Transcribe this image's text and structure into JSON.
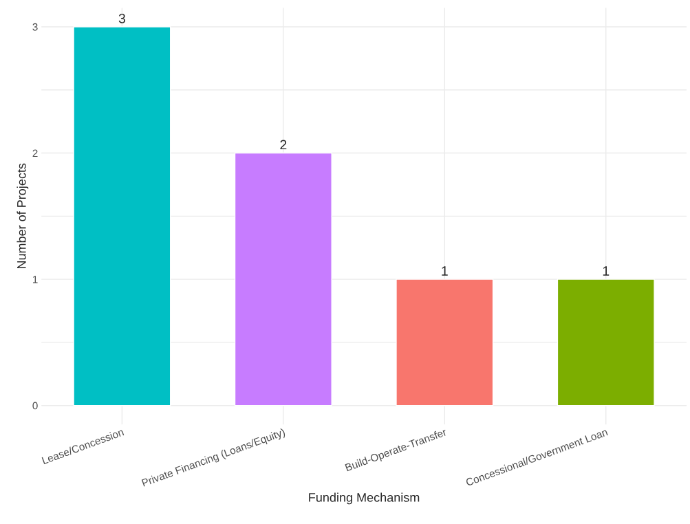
{
  "chart_data": {
    "type": "bar",
    "xlabel": "Funding Mechanism",
    "ylabel": "Number of Projects",
    "categories": [
      "Lease/Concession",
      "Private Financing (Loans/Equity)",
      "Build-Operate-Transfer",
      "Concessional/Government Loan"
    ],
    "values": [
      3,
      2,
      1,
      1
    ],
    "colors": [
      "#00bfc4",
      "#c77cff",
      "#f8766d",
      "#7cae00"
    ],
    "ylim": [
      -0.15,
      3.15
    ],
    "yticks": [
      0,
      {
        "value": 0.5,
        "label": null
      },
      1,
      {
        "value": 1.5,
        "label": null
      },
      2,
      {
        "value": 2.5,
        "label": null
      },
      3
    ],
    "grid": true,
    "data_labels": true,
    "legend": false
  }
}
